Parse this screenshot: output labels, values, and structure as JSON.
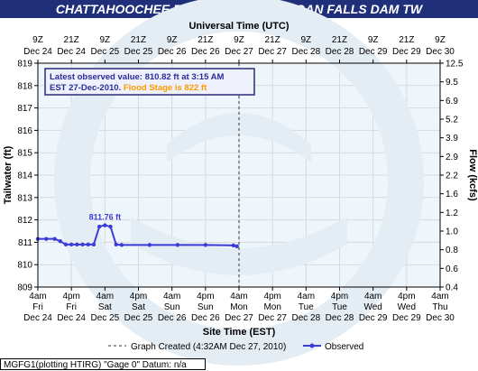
{
  "header": {
    "title": "CHATTAHOOCHEE RIVER BELOW MORGAN FALLS DAM TW"
  },
  "footer": {
    "text": "MGFG1(plotting HTIRG) \"Gage 0\" Datum: n/a"
  },
  "colors": {
    "header_bg": "#1f2f7a",
    "plot_bg": "#eef6fb",
    "series": "#3b3bd6",
    "flood_stage": "#ff9900",
    "legend_border": "#2b2b7a"
  },
  "chart_data": {
    "type": "line",
    "top_axis": {
      "label": "Universal Time (UTC)",
      "ticks": [
        [
          "9Z",
          "Dec 24"
        ],
        [
          "21Z",
          "Dec 24"
        ],
        [
          "9Z",
          "Dec 25"
        ],
        [
          "21Z",
          "Dec 25"
        ],
        [
          "9Z",
          "Dec 26"
        ],
        [
          "21Z",
          "Dec 26"
        ],
        [
          "9Z",
          "Dec 27"
        ],
        [
          "21Z",
          "Dec 27"
        ],
        [
          "9Z",
          "Dec 28"
        ],
        [
          "21Z",
          "Dec 28"
        ],
        [
          "9Z",
          "Dec 29"
        ],
        [
          "21Z",
          "Dec 29"
        ],
        [
          "9Z",
          "Dec 30"
        ]
      ]
    },
    "bottom_axis": {
      "label": "Site Time (EST)",
      "ticks": [
        [
          "4am",
          "Fri",
          "Dec 24"
        ],
        [
          "4pm",
          "Fri",
          "Dec 24"
        ],
        [
          "4am",
          "Sat",
          "Dec 25"
        ],
        [
          "4pm",
          "Sat",
          "Dec 25"
        ],
        [
          "4am",
          "Sun",
          "Dec 26"
        ],
        [
          "4pm",
          "Sun",
          "Dec 26"
        ],
        [
          "4am",
          "Mon",
          "Dec 27"
        ],
        [
          "4pm",
          "Mon",
          "Dec 27"
        ],
        [
          "4am",
          "Tue",
          "Dec 28"
        ],
        [
          "4pm",
          "Tue",
          "Dec 28"
        ],
        [
          "4am",
          "Wed",
          "Dec 29"
        ],
        [
          "4pm",
          "Wed",
          "Dec 29"
        ],
        [
          "4am",
          "Thu",
          "Dec 30"
        ]
      ]
    },
    "y_left": {
      "label": "Tailwater (ft)",
      "ticks": [
        "809",
        "810",
        "811",
        "812",
        "813",
        "814",
        "815",
        "816",
        "817",
        "818",
        "819"
      ],
      "ylim": [
        809,
        819
      ]
    },
    "y_right": {
      "label": "Flow (kcfs)",
      "ticks": [
        "0.4",
        "0.6",
        "0.8",
        "1.0",
        "1.2",
        "1.6",
        "2.2",
        "2.9",
        "3.9",
        "5.2",
        "6.9",
        "9.5",
        "12.5"
      ]
    },
    "legend": {
      "line1": "Latest observed value: 810.82 ft at 3:15 AM",
      "line2a": "EST 27-Dec-2010. ",
      "line2b": "Flood Stage is 822 ft"
    },
    "peak_label": "811.76 ft",
    "graph_created": "Graph Created (4:32AM Dec 27, 2010)",
    "observed_label": "Observed",
    "series": [
      {
        "name": "Observed",
        "x_hours": [
          0,
          3,
          6,
          8,
          10,
          12,
          14,
          16,
          18,
          20,
          22,
          24,
          26,
          28,
          30,
          40,
          50,
          60,
          70,
          71.25
        ],
        "values": [
          811.15,
          811.15,
          811.15,
          811.05,
          810.9,
          810.9,
          810.9,
          810.9,
          810.9,
          810.9,
          811.7,
          811.76,
          811.7,
          810.9,
          810.88,
          810.88,
          810.88,
          810.88,
          810.86,
          810.82
        ]
      }
    ],
    "xlim_hours": [
      0,
      144
    ],
    "now_hours": 72
  }
}
